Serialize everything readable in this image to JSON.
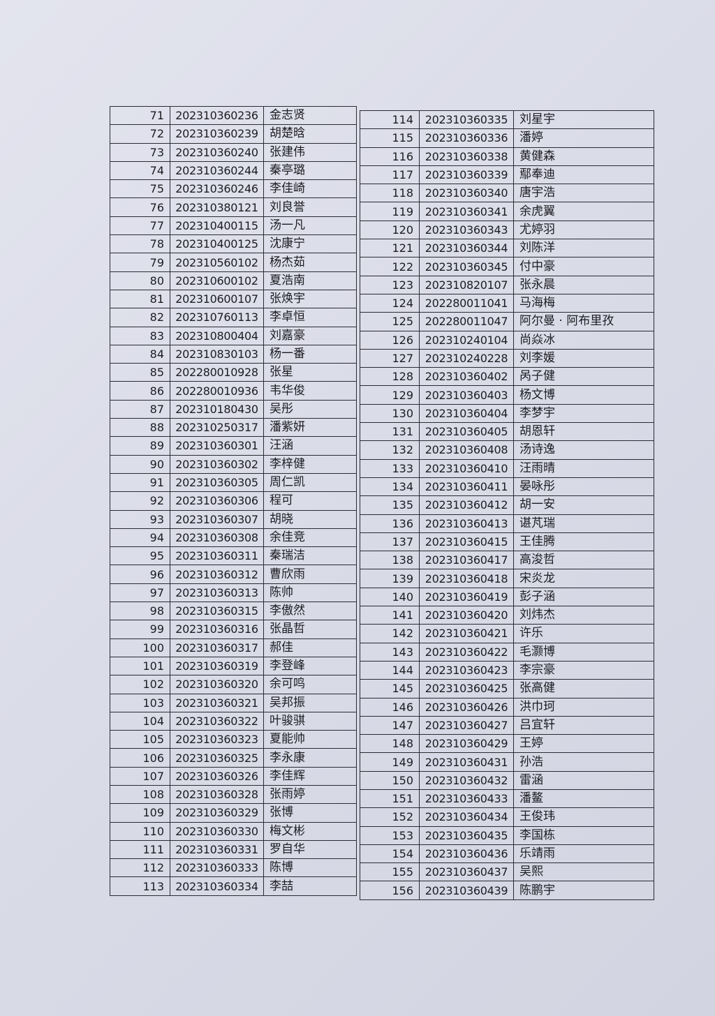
{
  "tables": {
    "left": [
      [
        "71",
        "202310360236",
        "金志贤"
      ],
      [
        "72",
        "202310360239",
        "胡楚晗"
      ],
      [
        "73",
        "202310360240",
        "张建伟"
      ],
      [
        "74",
        "202310360244",
        "秦亭璐"
      ],
      [
        "75",
        "202310360246",
        "李佳崎"
      ],
      [
        "76",
        "202310380121",
        "刘良誉"
      ],
      [
        "77",
        "202310400115",
        "汤一凡"
      ],
      [
        "78",
        "202310400125",
        "沈康宁"
      ],
      [
        "79",
        "202310560102",
        "杨杰茹"
      ],
      [
        "80",
        "202310600102",
        "夏浩南"
      ],
      [
        "81",
        "202310600107",
        "张焕宇"
      ],
      [
        "82",
        "202310760113",
        "李卓恒"
      ],
      [
        "83",
        "202310800404",
        "刘嘉豪"
      ],
      [
        "84",
        "202310830103",
        "杨一番"
      ],
      [
        "85",
        "202280010928",
        "张星"
      ],
      [
        "86",
        "202280010936",
        "韦华俊"
      ],
      [
        "87",
        "202310180430",
        "吴彤"
      ],
      [
        "88",
        "202310250317",
        "潘紫妍"
      ],
      [
        "89",
        "202310360301",
        "汪涵"
      ],
      [
        "90",
        "202310360302",
        "李梓健"
      ],
      [
        "91",
        "202310360305",
        "周仁凯"
      ],
      [
        "92",
        "202310360306",
        "程可"
      ],
      [
        "93",
        "202310360307",
        "胡晓"
      ],
      [
        "94",
        "202310360308",
        "余佳竞"
      ],
      [
        "95",
        "202310360311",
        "秦瑞洁"
      ],
      [
        "96",
        "202310360312",
        "曹欣雨"
      ],
      [
        "97",
        "202310360313",
        "陈帅"
      ],
      [
        "98",
        "202310360315",
        "李傲然"
      ],
      [
        "99",
        "202310360316",
        "张晶哲"
      ],
      [
        "100",
        "202310360317",
        "郝佳"
      ],
      [
        "101",
        "202310360319",
        "李登峰"
      ],
      [
        "102",
        "202310360320",
        "余可鸣"
      ],
      [
        "103",
        "202310360321",
        "吴邦振"
      ],
      [
        "104",
        "202310360322",
        "叶骏骐"
      ],
      [
        "105",
        "202310360323",
        "夏能帅"
      ],
      [
        "106",
        "202310360325",
        "李永康"
      ],
      [
        "107",
        "202310360326",
        "李佳辉"
      ],
      [
        "108",
        "202310360328",
        "张雨婷"
      ],
      [
        "109",
        "202310360329",
        "张博"
      ],
      [
        "110",
        "202310360330",
        "梅文彬"
      ],
      [
        "111",
        "202310360331",
        "罗自华"
      ],
      [
        "112",
        "202310360333",
        "陈博"
      ],
      [
        "113",
        "202310360334",
        "李喆"
      ]
    ],
    "right": [
      [
        "114",
        "202310360335",
        "刘星宇"
      ],
      [
        "115",
        "202310360336",
        "潘婷"
      ],
      [
        "116",
        "202310360338",
        "黄健森"
      ],
      [
        "117",
        "202310360339",
        "鄢奉迪"
      ],
      [
        "118",
        "202310360340",
        "唐宇浩"
      ],
      [
        "119",
        "202310360341",
        "余虎翼"
      ],
      [
        "120",
        "202310360343",
        "尤婷羽"
      ],
      [
        "121",
        "202310360344",
        "刘陈洋"
      ],
      [
        "122",
        "202310360345",
        "付中豪"
      ],
      [
        "123",
        "202310820107",
        "张永晨"
      ],
      [
        "124",
        "202280011041",
        "马海梅"
      ],
      [
        "125",
        "202280011047",
        "阿尔曼 · 阿布里孜"
      ],
      [
        "126",
        "202310240104",
        "尚焱冰"
      ],
      [
        "127",
        "202310240228",
        "刘李媛"
      ],
      [
        "128",
        "202310360402",
        "呙子健"
      ],
      [
        "129",
        "202310360403",
        "杨文博"
      ],
      [
        "130",
        "202310360404",
        "李梦宇"
      ],
      [
        "131",
        "202310360405",
        "胡恩轩"
      ],
      [
        "132",
        "202310360408",
        "汤诗逸"
      ],
      [
        "133",
        "202310360410",
        "汪雨晴"
      ],
      [
        "134",
        "202310360411",
        "晏咏彤"
      ],
      [
        "135",
        "202310360412",
        "胡一安"
      ],
      [
        "136",
        "202310360413",
        "谌芃瑞"
      ],
      [
        "137",
        "202310360415",
        "王佳腾"
      ],
      [
        "138",
        "202310360417",
        "高浚哲"
      ],
      [
        "139",
        "202310360418",
        "宋炎龙"
      ],
      [
        "140",
        "202310360419",
        "彭子涵"
      ],
      [
        "141",
        "202310360420",
        "刘炜杰"
      ],
      [
        "142",
        "202310360421",
        "许乐"
      ],
      [
        "143",
        "202310360422",
        "毛灏博"
      ],
      [
        "144",
        "202310360423",
        "李宗豪"
      ],
      [
        "145",
        "202310360425",
        "张高健"
      ],
      [
        "146",
        "202310360426",
        "洪巾珂"
      ],
      [
        "147",
        "202310360427",
        "吕宜轩"
      ],
      [
        "148",
        "202310360429",
        "王婷"
      ],
      [
        "149",
        "202310360431",
        "孙浩"
      ],
      [
        "150",
        "202310360432",
        "雷涵"
      ],
      [
        "151",
        "202310360433",
        "潘鳌"
      ],
      [
        "152",
        "202310360434",
        "王俊玮"
      ],
      [
        "153",
        "202310360435",
        "李国栋"
      ],
      [
        "154",
        "202310360436",
        "乐靖雨"
      ],
      [
        "155",
        "202310360437",
        "吴熙"
      ],
      [
        "156",
        "202310360439",
        "陈鹏宇"
      ]
    ]
  }
}
